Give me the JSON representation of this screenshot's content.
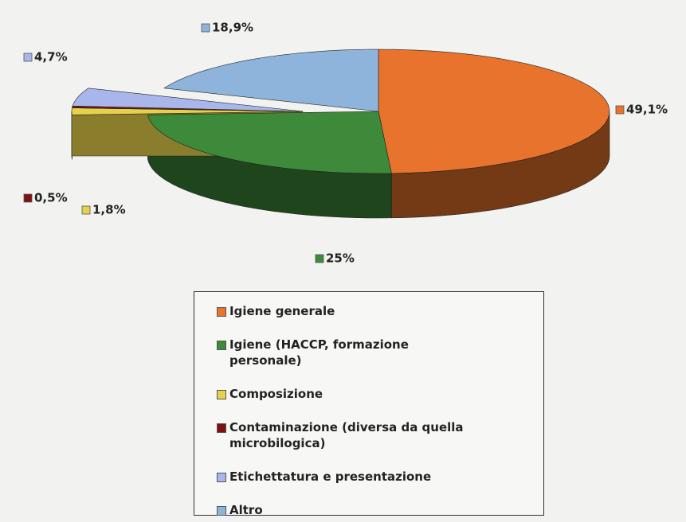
{
  "chart_data": {
    "type": "pie3d",
    "categories": [
      "Igiene generale",
      "Igiene (HACCP, formazione personale)",
      "Composizione",
      "Contaminazione (diversa da quella microbilogica)",
      "Etichettatura e presentazione",
      "Altro"
    ],
    "values": [
      49.1,
      25,
      1.8,
      0.5,
      4.7,
      18.9
    ],
    "value_labels": [
      "49,1%",
      "25%",
      "1,8%",
      "0,5%",
      "4,7%",
      "18,9%"
    ],
    "colors": [
      "#e8732c",
      "#3d8a3a",
      "#e6d24a",
      "#7e1212",
      "#a8b6ec",
      "#8fb4dc"
    ],
    "exploded": [
      false,
      false,
      true,
      true,
      true,
      false
    ],
    "legend": "bottom"
  }
}
